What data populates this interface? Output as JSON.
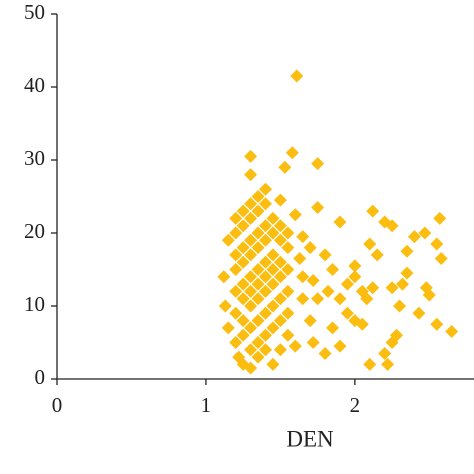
{
  "chart_data": {
    "type": "scatter",
    "x_label": "DEN",
    "color": "#fbbd10",
    "x": [
      1.61,
      1.58,
      1.3,
      1.75,
      1.53,
      1.3,
      1.4,
      1.5,
      1.75,
      1.6,
      1.9,
      2.12,
      2.2,
      2.25,
      2.57,
      2.47,
      2.4,
      2.55,
      2.1,
      2.15,
      2.35,
      2.58,
      1.8,
      1.7,
      1.65,
      1.85,
      2.0,
      2.0,
      1.95,
      2.05,
      2.08,
      1.9,
      1.82,
      2.12,
      2.25,
      2.35,
      2.32,
      2.48,
      2.5,
      2.43,
      2.3,
      2.55,
      2.65,
      2.0,
      1.95,
      2.05,
      1.85,
      1.9,
      1.8,
      2.25,
      2.2,
      2.22,
      2.1,
      2.28,
      1.7,
      1.72,
      1.6,
      1.65,
      1.75,
      1.72,
      1.65,
      1.63,
      1.15,
      1.12,
      1.13,
      1.15,
      1.2,
      1.22,
      1.25,
      1.3,
      1.35,
      1.45,
      1.5,
      1.55,
      1.2,
      1.2,
      1.2,
      1.2,
      1.2,
      1.2,
      1.25,
      1.25,
      1.25,
      1.25,
      1.25,
      1.25,
      1.25,
      1.25,
      1.3,
      1.3,
      1.3,
      1.3,
      1.3,
      1.3,
      1.3,
      1.3,
      1.3,
      1.35,
      1.35,
      1.35,
      1.35,
      1.35,
      1.35,
      1.35,
      1.35,
      1.35,
      1.4,
      1.4,
      1.4,
      1.4,
      1.4,
      1.4,
      1.4,
      1.4,
      1.4,
      1.45,
      1.45,
      1.45,
      1.45,
      1.45,
      1.45,
      1.45,
      1.5,
      1.5,
      1.5,
      1.5,
      1.5,
      1.5,
      1.55,
      1.55,
      1.55,
      1.55,
      1.55
    ],
    "values": [
      41.5,
      31,
      30.5,
      29.5,
      29,
      28,
      26,
      24.5,
      23.5,
      22.5,
      21.5,
      23,
      21.5,
      21,
      22,
      20,
      19.5,
      18.5,
      18.5,
      17,
      17.5,
      16.5,
      17,
      18,
      19.5,
      15,
      15.5,
      14,
      13,
      12,
      11,
      11,
      12,
      12.5,
      12.5,
      14.5,
      13,
      12.5,
      11.5,
      9,
      10,
      7.5,
      6.5,
      8,
      9,
      7.5,
      7,
      4.5,
      3.5,
      5,
      3.5,
      2,
      2,
      6,
      8,
      5,
      4.5,
      11,
      11,
      13.5,
      14,
      16.5,
      19,
      14,
      10,
      7,
      5,
      3,
      2,
      1.5,
      3,
      2,
      4,
      6,
      9,
      12,
      15,
      17,
      20,
      22,
      6,
      8,
      11,
      13,
      16,
      18,
      21,
      23,
      4,
      7,
      10,
      12,
      14,
      17,
      19,
      22,
      24,
      5,
      8,
      11,
      13,
      15,
      18,
      20,
      23,
      25,
      4,
      6,
      9,
      12,
      14,
      16,
      19,
      21,
      24,
      7,
      10,
      13,
      15,
      17,
      20,
      22,
      8,
      11,
      14,
      16,
      19,
      21,
      9,
      12,
      15,
      18,
      20
    ],
    "xlim": [
      0,
      2.8
    ],
    "xticks": [
      0,
      1,
      2
    ],
    "ylim": [
      0,
      50
    ],
    "yticks": [
      0,
      10,
      20,
      30,
      40,
      50
    ]
  }
}
